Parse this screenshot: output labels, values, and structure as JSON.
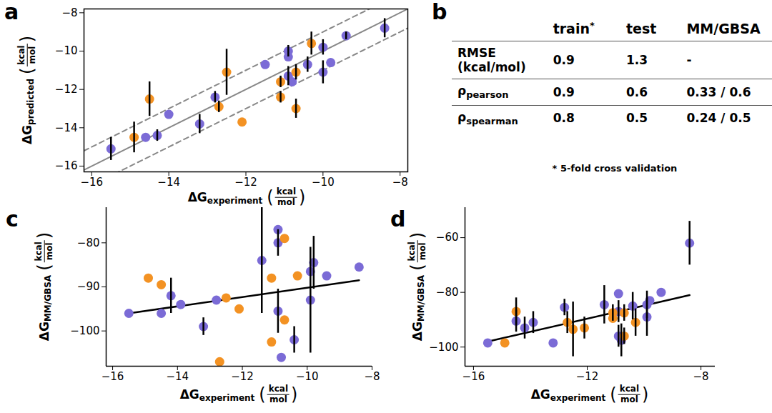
{
  "chart_data": [
    {
      "panel_label": "a",
      "type": "scatter",
      "x_label": {
        "main": "ΔG",
        "subscript": "experiment",
        "unit": {
          "left": "(",
          "numerator": "kcal",
          "denominator": "mol",
          "right": ")"
        }
      },
      "y_label": {
        "main": "ΔG",
        "subscript": "predicted",
        "unit": {
          "left": "(",
          "numerator": "kcal",
          "denominator": "mol",
          "right": ")"
        }
      },
      "xlim": [
        -16.2,
        -7.8
      ],
      "ylim": [
        -16.3,
        -7.8
      ],
      "xticks": [
        -16,
        -14,
        -12,
        -10,
        -8
      ],
      "yticks": [
        -16,
        -14,
        -12,
        -10,
        -8
      ],
      "grid": false,
      "reference_lines": [
        {
          "offset": 0,
          "line_style": "solid"
        },
        {
          "offset": 1,
          "line_style": "dashed"
        },
        {
          "offset": -1,
          "line_style": "dashed"
        }
      ],
      "series": [
        {
          "color": "#7b6bd6",
          "marker": "circle",
          "x": [
            -15.5,
            -14.6,
            -14.3,
            -14.0,
            -13.2,
            -12.8,
            -11.5,
            -10.9,
            -10.9,
            -10.9,
            -10.8,
            -10.4,
            -10.0,
            -10.0,
            -9.8,
            -9.4,
            -8.4
          ],
          "values": [
            -15.1,
            -14.5,
            -14.4,
            -13.3,
            -13.8,
            -12.4,
            -10.7,
            -10.0,
            -10.3,
            -11.3,
            -11.6,
            -10.7,
            -9.8,
            -11.1,
            -10.6,
            -9.2,
            -8.8
          ],
          "errors": [
            0.6,
            null,
            0.3,
            null,
            0.5,
            0.3,
            null,
            0.3,
            null,
            0.5,
            null,
            0.4,
            0.4,
            0.6,
            null,
            0.2,
            0.5
          ]
        },
        {
          "color": "#f39223",
          "marker": "circle",
          "x": [
            -14.9,
            -14.5,
            -12.7,
            -12.5,
            -12.1,
            -11.1,
            -11.1,
            -10.7,
            -10.7,
            -10.3
          ],
          "values": [
            -14.5,
            -12.5,
            -12.9,
            -11.1,
            -13.7,
            -11.6,
            -12.4,
            -11.1,
            -13.0,
            -9.6
          ],
          "errors": [
            0.8,
            0.9,
            0.3,
            1.2,
            null,
            0.3,
            0.3,
            0.4,
            0.5,
            0.6
          ]
        }
      ]
    },
    {
      "panel_label": "c",
      "type": "scatter",
      "x_label": {
        "main": "ΔG",
        "subscript": "experiment",
        "unit": {
          "left": "(",
          "numerator": "kcal",
          "denominator": "mol",
          "right": ")"
        }
      },
      "y_label": {
        "main": "ΔG",
        "subscript": "MM/GBSA",
        "unit": {
          "left": "(",
          "numerator": "kcal",
          "denominator": "mol",
          "right": ")"
        }
      },
      "xlim": [
        -16.2,
        -8
      ],
      "ylim": [
        -108,
        -72
      ],
      "xticks": [
        -16,
        -14,
        -12,
        -10,
        -8
      ],
      "yticks": [
        -100,
        -90,
        -80
      ],
      "grid": false,
      "fit": {
        "type": "line",
        "color": "#000000",
        "x": [
          -15.5,
          -8.4
        ],
        "values": [
          -96,
          -88.5
        ]
      },
      "series": [
        {
          "color": "#7b6bd6",
          "marker": "circle",
          "x": [
            -15.5,
            -14.5,
            -14.2,
            -13.9,
            -13.2,
            -12.8,
            -11.4,
            -10.9,
            -10.9,
            -10.9,
            -10.8,
            -10.4,
            -9.9,
            -9.9,
            -9.8,
            -9.4,
            -8.4
          ],
          "values": [
            -96,
            -96,
            -92,
            -94,
            -99,
            -93,
            -84,
            -80,
            -77,
            -95.5,
            -106,
            -102,
            -86.5,
            -93,
            -84.5,
            -87.5,
            -85.5
          ],
          "errors": [
            null,
            null,
            4,
            null,
            2,
            null,
            12,
            3,
            null,
            5,
            null,
            3,
            null,
            12,
            6,
            null,
            null
          ]
        },
        {
          "color": "#f39223",
          "marker": "circle",
          "x": [
            -14.9,
            -14.5,
            -12.7,
            -12.5,
            -12.1,
            -11.1,
            -11.1,
            -10.7,
            -10.7,
            -10.3
          ],
          "values": [
            -88,
            -89.5,
            -107,
            -92.5,
            -95,
            -88,
            -102.5,
            -79,
            -97.5,
            -87.5
          ],
          "errors": [
            null,
            null,
            null,
            null,
            null,
            null,
            null,
            null,
            null,
            null
          ]
        }
      ]
    },
    {
      "panel_label": "d",
      "type": "scatter",
      "x_label": {
        "main": "ΔG",
        "subscript": "experiment",
        "unit": {
          "left": "(",
          "numerator": "kcal",
          "denominator": "mol",
          "right": ")"
        }
      },
      "y_label": {
        "main": "ΔG",
        "subscript": "MM/GBSA",
        "unit": {
          "left": "(",
          "numerator": "kcal",
          "denominator": "mol",
          "right": ")"
        }
      },
      "xlim": [
        -16.3,
        -7.5
      ],
      "ylim": [
        -107,
        -49
      ],
      "xticks": [
        -16,
        -12,
        -8
      ],
      "yticks": [
        -100,
        -80,
        -60
      ],
      "grid": false,
      "fit": {
        "type": "line",
        "color": "#000000",
        "x": [
          -15.5,
          -8.4
        ],
        "values": [
          -98,
          -81
        ]
      },
      "series": [
        {
          "color": "#7b6bd6",
          "marker": "circle",
          "x": [
            -15.5,
            -14.5,
            -14.2,
            -13.9,
            -13.2,
            -12.8,
            -11.4,
            -10.9,
            -10.9,
            -10.9,
            -10.8,
            -10.4,
            -9.9,
            -9.9,
            -9.8,
            -9.4,
            -8.4
          ],
          "values": [
            -98.5,
            -90.5,
            -93,
            -91,
            -98.5,
            -85.5,
            -84.5,
            -80.5,
            -87,
            -96,
            -97.5,
            -85,
            -84.5,
            -89,
            -83,
            -80,
            -62
          ],
          "errors": [
            null,
            4,
            4,
            4,
            null,
            3,
            7,
            null,
            4,
            4,
            6,
            5,
            5,
            7,
            null,
            null,
            8
          ]
        },
        {
          "color": "#f39223",
          "marker": "circle",
          "x": [
            -14.9,
            -14.5,
            -12.7,
            -12.5,
            -12.1,
            -11.1,
            -11.1,
            -10.7,
            -10.7,
            -10.3
          ],
          "values": [
            -98.5,
            -87,
            -91,
            -93.5,
            -93,
            -87.5,
            -89.5,
            -87.5,
            -96,
            -91
          ],
          "errors": [
            null,
            5,
            4,
            10,
            4,
            3,
            null,
            3,
            3,
            5
          ]
        }
      ]
    }
  ],
  "table": {
    "panel_label": "b",
    "header": [
      null,
      {
        "text": "train",
        "sup": "*"
      },
      {
        "text": "test"
      },
      {
        "text": "MM/GBSA"
      }
    ],
    "rows": [
      [
        {
          "lines": [
            "RMSE",
            "(kcal/mol)"
          ]
        },
        "0.9",
        "1.3",
        "-"
      ],
      [
        {
          "text": "ρ",
          "subscript": "pearson"
        },
        "0.9",
        "0.6",
        "0.33 / 0.6"
      ],
      [
        {
          "text": "ρ",
          "subscript": "spearman"
        },
        "0.8",
        "0.5",
        "0.24 / 0.5"
      ]
    ],
    "footnote": "* 5-fold cross validation"
  }
}
